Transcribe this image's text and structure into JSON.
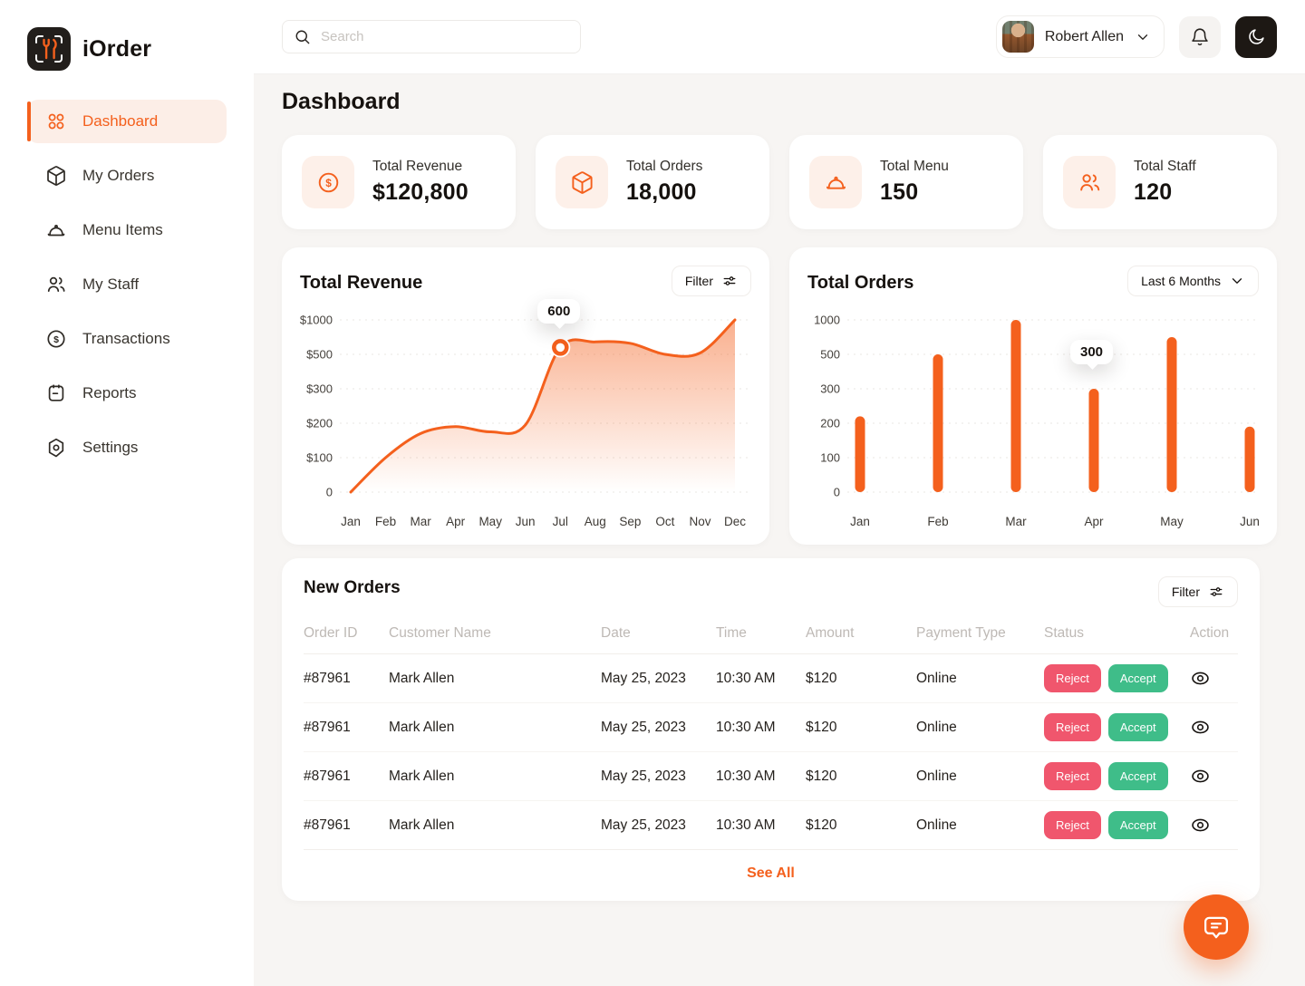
{
  "app": {
    "name": "iOrder"
  },
  "labels": {
    "filter": "Filter"
  },
  "topbar": {
    "search_placeholder": "Search",
    "user_name": "Robert Allen"
  },
  "sidebar": {
    "items": [
      {
        "label": "Dashboard",
        "icon": "dashboard-grid-icon",
        "active": true
      },
      {
        "label": "My Orders",
        "icon": "package-icon",
        "active": false
      },
      {
        "label": "Menu Items",
        "icon": "cloche-icon",
        "active": false
      },
      {
        "label": "My Staff",
        "icon": "staff-icon",
        "active": false
      },
      {
        "label": "Transactions",
        "icon": "dollar-circle-icon",
        "active": false
      },
      {
        "label": "Reports",
        "icon": "report-icon",
        "active": false
      },
      {
        "label": "Settings",
        "icon": "settings-icon",
        "active": false
      }
    ]
  },
  "page": {
    "title": "Dashboard"
  },
  "stats": [
    {
      "label": "Total Revenue",
      "value": "$120,800",
      "icon": "dollar-circle-icon"
    },
    {
      "label": "Total Orders",
      "value": "18,000",
      "icon": "package-icon"
    },
    {
      "label": "Total Menu",
      "value": "150",
      "icon": "cloche-icon"
    },
    {
      "label": "Total Staff",
      "value": "120",
      "icon": "staff-icon"
    }
  ],
  "chart_data": [
    {
      "type": "area",
      "title": "Total Revenue",
      "x": [
        "Jan",
        "Feb",
        "Mar",
        "Apr",
        "May",
        "Jun",
        "Jul",
        "Aug",
        "Sep",
        "Oct",
        "Nov",
        "Dec"
      ],
      "values": [
        0,
        100,
        170,
        190,
        175,
        195,
        600,
        680,
        660,
        500,
        520,
        1000
      ],
      "y_ticks": [
        0,
        100,
        200,
        300,
        500,
        1000
      ],
      "y_tick_labels": [
        "0",
        "$100",
        "$200",
        "$300",
        "$500",
        "$1000"
      ],
      "ylim": [
        0,
        1000
      ],
      "grid": "horizontal-dashed",
      "legend": "none",
      "highlight": {
        "x": "Jul",
        "label": "600"
      },
      "line_color": "#F4601D"
    },
    {
      "type": "bar",
      "title": "Total Orders",
      "categories": [
        "Jan",
        "Feb",
        "Mar",
        "Apr",
        "May",
        "Jun"
      ],
      "values": [
        220,
        500,
        1000,
        300,
        750,
        190
      ],
      "y_ticks": [
        0,
        100,
        200,
        300,
        500,
        1000
      ],
      "y_tick_labels": [
        "0",
        "100",
        "200",
        "300",
        "500",
        "1000"
      ],
      "ylim": [
        0,
        1000
      ],
      "grid": "horizontal-dashed",
      "legend": "none",
      "highlight": {
        "x": "Apr",
        "label": "300"
      },
      "range": "Last 6 Months",
      "bar_color": "#F4601D"
    }
  ],
  "orders_table": {
    "title": "New Orders",
    "see_all": "See All",
    "columns": [
      "Order ID",
      "Customer Name",
      "Date",
      "Time",
      "Amount",
      "Payment Type",
      "Status",
      "Action"
    ],
    "rows": [
      {
        "order_id": "#87961",
        "customer_name": "Mark Allen",
        "date": "May 25, 2023",
        "time": "10:30 AM",
        "amount": "$120",
        "payment_type": "Online",
        "actions": [
          "Reject",
          "Accept"
        ]
      },
      {
        "order_id": "#87961",
        "customer_name": "Mark Allen",
        "date": "May 25, 2023",
        "time": "10:30 AM",
        "amount": "$120",
        "payment_type": "Online",
        "actions": [
          "Reject",
          "Accept"
        ]
      },
      {
        "order_id": "#87961",
        "customer_name": "Mark Allen",
        "date": "May 25, 2023",
        "time": "10:30 AM",
        "amount": "$120",
        "payment_type": "Online",
        "actions": [
          "Reject",
          "Accept"
        ]
      },
      {
        "order_id": "#87961",
        "customer_name": "Mark Allen",
        "date": "May 25, 2023",
        "time": "10:30 AM",
        "amount": "$120",
        "payment_type": "Online",
        "actions": [
          "Reject",
          "Accept"
        ]
      }
    ]
  },
  "colors": {
    "primary": "#F4601D",
    "primary_soft": "#FCEEE7",
    "accept_green": "#3FBD89",
    "reject_red": "#F0566D",
    "dark_button": "#1D1814",
    "page_bg": "#F7F5F3"
  }
}
